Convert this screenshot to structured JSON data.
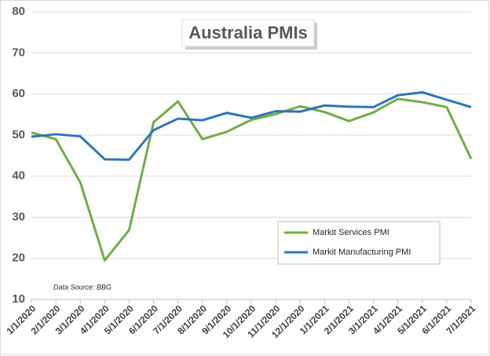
{
  "chart_data": {
    "type": "line",
    "title": "Australia PMIs",
    "annotation": "Data Source: BBG",
    "categories": [
      "1/1/2020",
      "2/1/2020",
      "3/1/2020",
      "4/1/2020",
      "5/1/2020",
      "6/1/2020",
      "7/1/2020",
      "8/1/2020",
      "9/1/2020",
      "10/1/2020",
      "11/1/2020",
      "12/1/2020",
      "1/1/2021",
      "2/1/2021",
      "3/1/2021",
      "4/1/2021",
      "5/1/2021",
      "6/1/2021",
      "7/1/2021"
    ],
    "series": [
      {
        "name": "Markit Services PMI",
        "color": "#70ad47",
        "values": [
          50.6,
          49.0,
          38.5,
          19.5,
          26.9,
          53.1,
          58.2,
          49.0,
          50.8,
          53.7,
          55.1,
          57.0,
          55.6,
          53.4,
          55.5,
          58.8,
          58.0,
          56.8,
          44.2
        ]
      },
      {
        "name": "Markit Manufacturing PMI",
        "color": "#2e75b6",
        "values": [
          49.6,
          50.2,
          49.7,
          44.1,
          44.0,
          51.2,
          54.0,
          53.6,
          55.4,
          54.2,
          55.8,
          55.7,
          57.2,
          56.9,
          56.8,
          59.7,
          60.4,
          58.6,
          56.8
        ]
      }
    ],
    "ylim": [
      10,
      80
    ],
    "yticks": [
      10,
      20,
      30,
      40,
      50,
      60,
      70,
      80
    ],
    "grid": true
  }
}
